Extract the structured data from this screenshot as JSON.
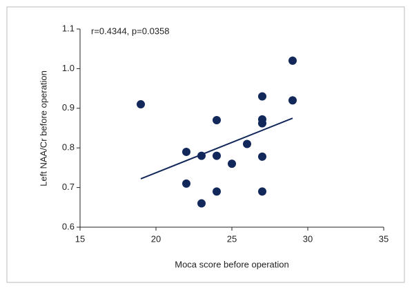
{
  "chart_data": {
    "type": "scatter",
    "xlabel": "Moca score before operation",
    "ylabel": "Left NAA/Cr before operation",
    "annotation": "r=0.4344, p=0.0358",
    "color": "#13285a",
    "x": [
      19,
      22,
      22,
      23,
      23,
      24,
      24,
      24,
      25,
      26,
      27,
      27,
      27,
      27,
      27,
      29,
      29
    ],
    "y": [
      0.91,
      0.79,
      0.71,
      0.78,
      0.66,
      0.87,
      0.78,
      0.69,
      0.76,
      0.81,
      0.93,
      0.872,
      0.862,
      0.778,
      0.69,
      1.02,
      0.92
    ],
    "fit": {
      "x": [
        19,
        29
      ],
      "y": [
        0.722,
        0.875
      ]
    },
    "xlim": [
      15,
      35
    ],
    "xticks": [
      15,
      20,
      25,
      30,
      35
    ],
    "ylim": [
      0.6,
      1.1
    ],
    "yticks": [
      0.6,
      0.7,
      0.8,
      0.9,
      {
        "value": 1,
        "label": "1.0"
      },
      1.1
    ]
  }
}
